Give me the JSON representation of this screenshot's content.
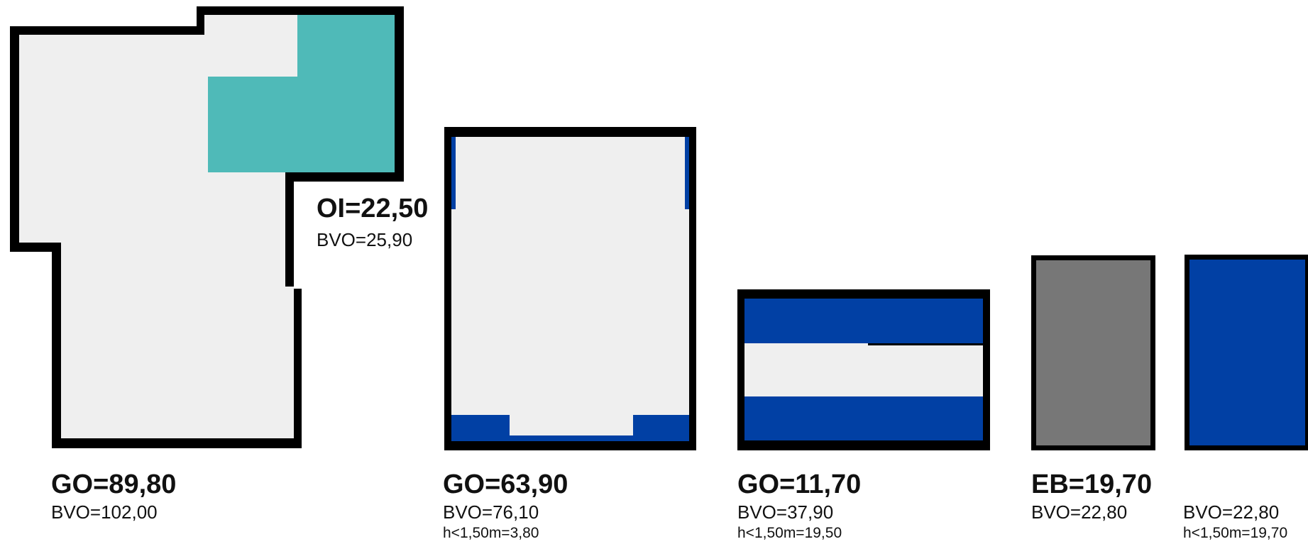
{
  "colors": {
    "outline": "#000000",
    "floor": "#efefef",
    "teal": "#4fbab8",
    "blue": "#0140a4",
    "gray": "#777777"
  },
  "labels": {
    "unit1": {
      "title": "GO=89,80",
      "bvo": "BVO=102,00"
    },
    "unit1_sub": {
      "title": "OI=22,50",
      "bvo": "BVO=25,90"
    },
    "unit2": {
      "title": "GO=63,90",
      "bvo": "BVO=76,10",
      "low": "h<1,50m=3,80"
    },
    "unit3": {
      "title": "GO=11,70",
      "bvo": "BVO=37,90",
      "low": "h<1,50m=19,50"
    },
    "unit4": {
      "title": "EB=19,70",
      "bvo": "BVO=22,80"
    },
    "unit5": {
      "bvo": "BVO=22,80",
      "low": "h<1,50m=19,70"
    }
  }
}
